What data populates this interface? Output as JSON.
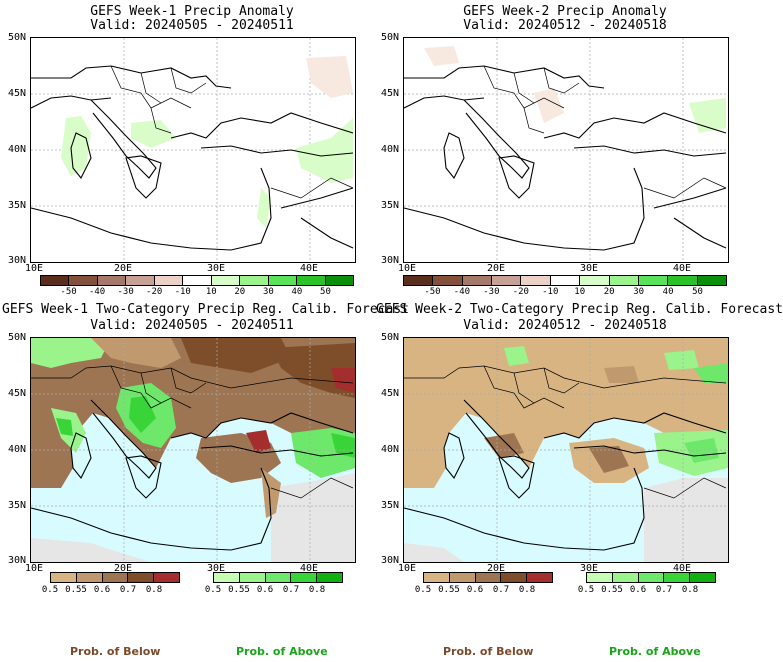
{
  "panels": {
    "p1": {
      "title": "GEFS Week-1 Precip Anomaly",
      "valid": "Valid: 20240505 - 20240511"
    },
    "p2": {
      "title": "GEFS Week-2 Precip Anomaly",
      "valid": "Valid: 20240512 - 20240518"
    },
    "p3": {
      "title": "GEFS Week-1 Two-Category Precip Reg. Calib. Forecast",
      "valid": "Valid: 20240505 - 20240511"
    },
    "p4": {
      "title": "GEFS Week-2 Two-Category Precip Reg. Calib. Forecast",
      "valid": "Valid: 20240512 - 20240518"
    }
  },
  "axes": {
    "lat_labels": [
      "50N",
      "45N",
      "40N",
      "35N",
      "30N"
    ],
    "lon_labels": [
      "10E",
      "20E",
      "30E",
      "40E"
    ]
  },
  "anomaly_colorbar": {
    "labels": [
      "-50",
      "-40",
      "-30",
      "-20",
      "-10",
      "10",
      "20",
      "30",
      "40",
      "50"
    ],
    "colors": [
      "#5a2d1c",
      "#84503c",
      "#a6786a",
      "#c8a196",
      "#ecd1c6",
      "#ffffff",
      "#d9fdc8",
      "#9af38b",
      "#5ae35a",
      "#29c229",
      "#0a8f0a"
    ]
  },
  "below_colorbar": {
    "labels": [
      "0.5",
      "0.55",
      "0.6",
      "0.7",
      "0.8"
    ],
    "colors": [
      "#d8b482",
      "#c09a6e",
      "#9e7552",
      "#7e4e2a",
      "#a42d2d"
    ]
  },
  "above_colorbar": {
    "labels": [
      "0.5",
      "0.55",
      "0.6",
      "0.7",
      "0.8"
    ],
    "colors": [
      "#c6ffb4",
      "#9af38b",
      "#6ee86a",
      "#38d438",
      "#10b010"
    ]
  },
  "legend": {
    "below_label": "Prob. of Below",
    "above_label": "Prob. of Above",
    "below_color": "#7b4a2b",
    "above_color": "#1aa51a"
  },
  "map_colors": {
    "sea": "#d8fbff",
    "no_data": "#e6e6e6",
    "land_brown": "#d8b482",
    "land_green": "#9af38b",
    "border": "#000000"
  }
}
